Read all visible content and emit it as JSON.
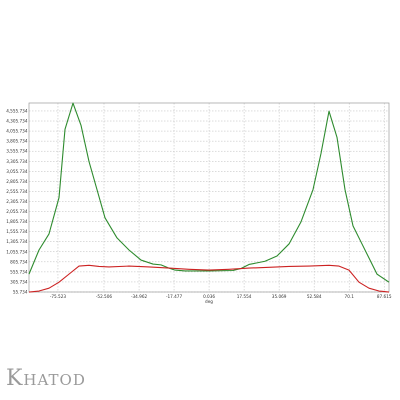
{
  "brand": {
    "name": "Khatod"
  },
  "chart_data": {
    "type": "line",
    "title": "",
    "xlabel": "deg",
    "ylabel": "",
    "xlim": [
      -90,
      90
    ],
    "ylim": [
      55.734,
      4753.734
    ],
    "x_tick_values": [
      -75.523,
      -52.506,
      -34.962,
      -17.477,
      0.036,
      17.554,
      35.069,
      52.584,
      70.1,
      87.615
    ],
    "x_tick_labels": [
      "-75.523",
      "-52.506",
      "-34.962",
      "-17.477",
      "0.036",
      "17.554",
      "35.069",
      "52.584",
      "70.1",
      "87.615"
    ],
    "y_tick_values": [
      55.734,
      305.734,
      555.734,
      805.734,
      1055.734,
      1305.734,
      1555.734,
      1805.734,
      2055.734,
      2305.734,
      2555.734,
      2805.734,
      3055.734,
      3305.734,
      3555.734,
      3805.734,
      4055.734,
      4305.734,
      4555.734
    ],
    "y_tick_labels": [
      "55.734",
      "305.734",
      "555.734",
      "805.734",
      "1,055.734",
      "1,305.734",
      "1,555.734",
      "1,805.734",
      "2,055.734",
      "2,305.734",
      "2,555.734",
      "2,805.734",
      "3,055.734",
      "3,305.734",
      "3,555.734",
      "3,805.734",
      "4,055.734",
      "4,305.734",
      "4,555.734"
    ],
    "grid": true,
    "series": [
      {
        "color": "#2e8b2e",
        "x": [
          -90,
          -85,
          -80,
          -75,
          -72,
          -68,
          -64,
          -60,
          -56,
          -52,
          -46,
          -40,
          -34,
          -28,
          -24,
          -20,
          -17,
          -12,
          0,
          12,
          16,
          20,
          24,
          28,
          34,
          40,
          46,
          52,
          56,
          60,
          64,
          68,
          72,
          76,
          80,
          84,
          90
        ],
        "y": [
          500,
          1100,
          1500,
          2400,
          4100,
          4750,
          4200,
          3300,
          2600,
          1900,
          1400,
          1100,
          850,
          750,
          730,
          650,
          600,
          580,
          580,
          590,
          640,
          740,
          780,
          820,
          950,
          1250,
          1800,
          2600,
          3500,
          4550,
          3900,
          2600,
          1700,
          1300,
          900,
          500,
          300
        ]
      },
      {
        "color": "#cc2222",
        "x": [
          -90,
          -85,
          -80,
          -75,
          -70,
          -65,
          -60,
          -55,
          -50,
          -40,
          -30,
          -20,
          -10,
          0,
          10,
          20,
          30,
          40,
          50,
          60,
          65,
          70,
          75,
          80,
          85,
          90
        ],
        "y": [
          55,
          80,
          150,
          300,
          500,
          700,
          720,
          690,
          680,
          700,
          680,
          650,
          620,
          600,
          620,
          650,
          670,
          690,
          700,
          720,
          700,
          600,
          300,
          150,
          80,
          55
        ]
      }
    ]
  }
}
